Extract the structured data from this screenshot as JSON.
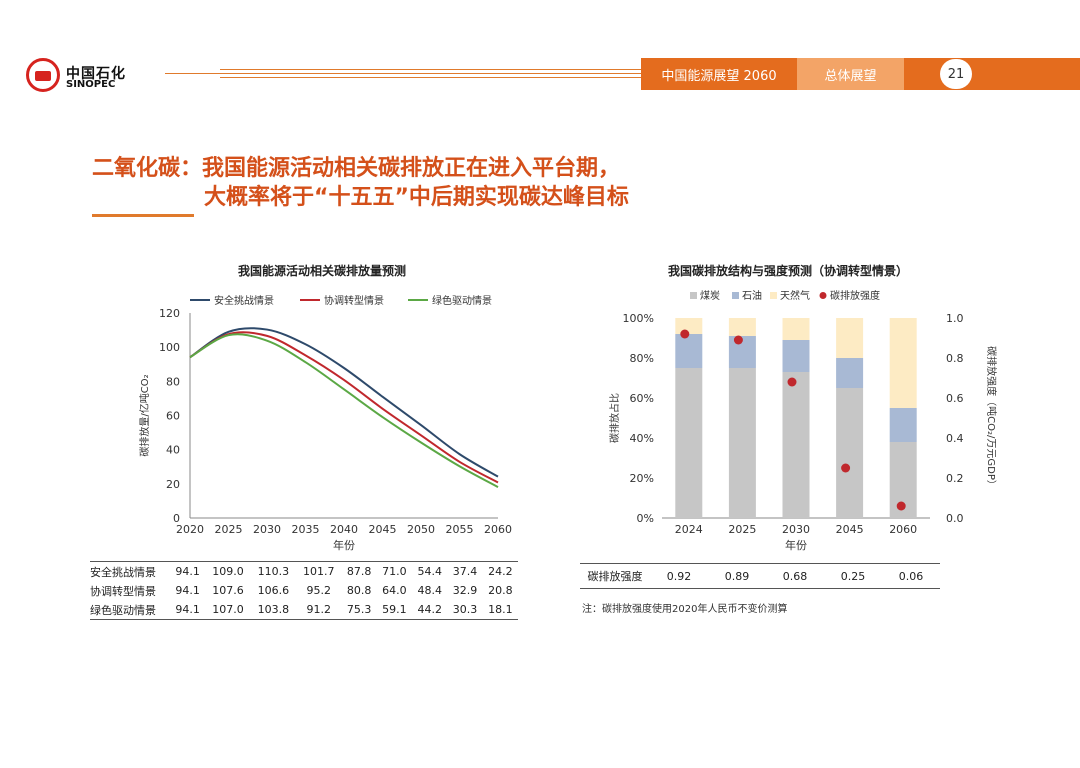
{
  "header": {
    "logo_cn": "中国石化",
    "logo_en": "SINOPEC",
    "tab_report": "中国能源展望 2060",
    "tab_section": "总体展望",
    "page_number": "21",
    "accent_color": "#e46c1e"
  },
  "title": {
    "line1": "二氧化碳：我国能源活动相关碳排放正在进入平台期，",
    "line2": "大概率将于“十五五”中后期实现碳达峰目标"
  },
  "note": "注：碳排放强度使用2020年人民币不变价测算",
  "chart_data": [
    {
      "type": "line",
      "title": "我国能源活动相关碳排放量预测",
      "xlabel": "年份",
      "ylabel": "碳排放量/亿吨CO₂",
      "ylim": [
        0,
        120
      ],
      "yticks": [
        0,
        20,
        40,
        60,
        80,
        100,
        120
      ],
      "xlim": [
        2020,
        2060
      ],
      "x": [
        2020,
        2025,
        2030,
        2035,
        2040,
        2045,
        2050,
        2055,
        2060
      ],
      "legend_position": "top",
      "series": [
        {
          "name": "安全挑战情景",
          "color": "#2e4a6b",
          "values": [
            94.1,
            109.0,
            110.3,
            101.7,
            87.8,
            71.0,
            54.4,
            37.4,
            24.2
          ]
        },
        {
          "name": "协调转型情景",
          "color": "#c0282d",
          "values": [
            94.1,
            107.6,
            106.6,
            95.2,
            80.8,
            64.0,
            48.4,
            32.9,
            20.8
          ]
        },
        {
          "name": "绿色驱动情景",
          "color": "#5ba845",
          "values": [
            94.1,
            107.0,
            103.8,
            91.2,
            75.3,
            59.1,
            44.2,
            30.3,
            18.1
          ]
        }
      ],
      "table": {
        "columns": [
          "2020",
          "2025",
          "2030",
          "2035",
          "2040",
          "2045",
          "2050",
          "2055",
          "2060"
        ],
        "rows": [
          {
            "label": "安全挑战情景",
            "values": [
              "94.1",
              "109.0",
              "110.3",
              "101.7",
              "87.8",
              "71.0",
              "54.4",
              "37.4",
              "24.2"
            ]
          },
          {
            "label": "协调转型情景",
            "values": [
              "94.1",
              "107.6",
              "106.6",
              "95.2",
              "80.8",
              "64.0",
              "48.4",
              "32.9",
              "20.8"
            ]
          },
          {
            "label": "绿色驱动情景",
            "values": [
              "94.1",
              "107.0",
              "103.8",
              "91.2",
              "75.3",
              "59.1",
              "44.2",
              "30.3",
              "18.1"
            ]
          }
        ]
      }
    },
    {
      "type": "bar",
      "stacked": true,
      "title": "我国碳排放结构与强度预测（协调转型情景）",
      "categories": [
        "2024",
        "2025",
        "2030",
        "2045",
        "2060"
      ],
      "xlabel": "年份",
      "ylabel": "碳排放占比",
      "ylim": [
        0,
        100
      ],
      "yticks": [
        "0%",
        "20%",
        "40%",
        "60%",
        "80%",
        "100%"
      ],
      "y2label": "碳排放强度（吨CO₂/万元GDP）",
      "y2lim": [
        0,
        1.0
      ],
      "y2ticks": [
        "0.0",
        "0.2",
        "0.4",
        "0.6",
        "0.8",
        "1.0"
      ],
      "legend_position": "top",
      "series": [
        {
          "name": "煤炭",
          "color": "#c6c6c6",
          "values": [
            75,
            75,
            73,
            65,
            38
          ]
        },
        {
          "name": "石油",
          "color": "#a8b9d4",
          "values": [
            17,
            16,
            16,
            15,
            17
          ]
        },
        {
          "name": "天然气",
          "color": "#fdebc4",
          "values": [
            8,
            9,
            11,
            20,
            45
          ]
        }
      ],
      "points": {
        "name": "碳排放强度",
        "color": "#c0282d",
        "values": [
          0.92,
          0.89,
          0.68,
          0.25,
          0.06
        ]
      },
      "table": {
        "label": "碳排放强度",
        "values": [
          "0.92",
          "0.89",
          "0.68",
          "0.25",
          "0.06"
        ]
      }
    }
  ]
}
